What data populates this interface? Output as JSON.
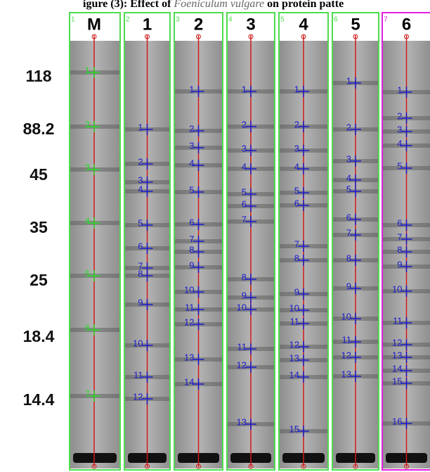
{
  "title": {
    "prefix": "igure (3): Effect of ",
    "species": "Foeniculum vulgare",
    "suffix": " on protein patte"
  },
  "markers": [
    "118",
    "88.2",
    "45",
    "35",
    "25",
    "18.4",
    "14.4"
  ],
  "lanes": [
    {
      "index": "1",
      "label": "M",
      "bands": [
        "1",
        "2",
        "3",
        "4",
        "5",
        "6",
        "7"
      ]
    },
    {
      "index": "2",
      "label": "1",
      "bands": [
        "1",
        "2",
        "3",
        "4",
        "5",
        "6",
        "7",
        "8",
        "9",
        "10",
        "11",
        "12"
      ]
    },
    {
      "index": "3",
      "label": "2",
      "bands": [
        "1",
        "2",
        "3",
        "4",
        "5",
        "6",
        "7",
        "8",
        "9",
        "10",
        "11",
        "12",
        "13",
        "14"
      ]
    },
    {
      "index": "4",
      "label": "3",
      "bands": [
        "1",
        "2",
        "3",
        "4",
        "5",
        "6",
        "7",
        "8",
        "9",
        "10",
        "11",
        "12",
        "13"
      ]
    },
    {
      "index": "5",
      "label": "4",
      "bands": [
        "1",
        "2",
        "3",
        "4",
        "5",
        "6",
        "7",
        "8",
        "9",
        "10",
        "11",
        "12",
        "13",
        "14",
        "15"
      ]
    },
    {
      "index": "6",
      "label": "5",
      "bands": [
        "1",
        "2",
        "3",
        "4",
        "5",
        "6",
        "7",
        "8",
        "9",
        "10",
        "11",
        "12",
        "13"
      ]
    },
    {
      "index": "7",
      "label": "6",
      "bands": [
        "1",
        "2",
        "3",
        "4",
        "5",
        "6",
        "7",
        "8",
        "9",
        "10",
        "11",
        "12",
        "13",
        "14",
        "15",
        "16"
      ]
    }
  ]
}
